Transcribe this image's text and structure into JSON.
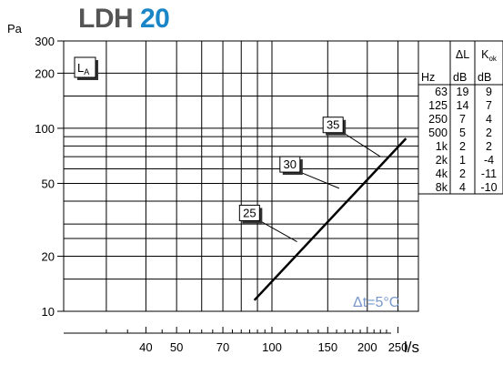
{
  "title": {
    "model": "LDH",
    "size": "20"
  },
  "y_unit": "Pa",
  "x_unit": "l/s",
  "la_label": "L",
  "la_sub": "A",
  "note": "Δt=5°C",
  "colors": {
    "title": "#555555",
    "accent": "#1a86c8",
    "note": "#7a98cc"
  },
  "chart_data": {
    "type": "line",
    "x_scale": "log",
    "y_scale": "log",
    "xlim": [
      22,
      290
    ],
    "ylim": [
      10,
      300
    ],
    "x_ticks": [
      40,
      50,
      70,
      100,
      150,
      200,
      250
    ],
    "x_tick_labels": [
      "40",
      "50",
      "70",
      "100",
      "150",
      "200",
      "250"
    ],
    "y_ticks": [
      10,
      20,
      50,
      100,
      200,
      300
    ],
    "y_tick_labels": [
      "10",
      "20",
      "50",
      "100",
      "200",
      "300"
    ],
    "series": [
      {
        "x": [
          88,
          265
        ],
        "y": [
          11.5,
          88
        ]
      }
    ],
    "sound_levels": [
      {
        "label": "25",
        "x": 120,
        "y": 24,
        "box_x": 79,
        "box_y": 38
      },
      {
        "label": "30",
        "x": 163,
        "y": 47,
        "box_x": 106,
        "box_y": 70
      },
      {
        "label": "35",
        "x": 220,
        "y": 70,
        "box_x": 145,
        "box_y": 115
      }
    ],
    "table": {
      "headers": [
        {
          "main": "",
          "sub": "Hz"
        },
        {
          "main": "ΔL",
          "sub": "dB"
        },
        {
          "main": "K",
          "main_sub": "ok",
          "sub": "dB"
        }
      ],
      "rows": [
        [
          "63",
          "19",
          "9"
        ],
        [
          "125",
          "14",
          "7"
        ],
        [
          "250",
          "7",
          "4"
        ],
        [
          "500",
          "5",
          "2"
        ],
        [
          "1k",
          "2",
          "2"
        ],
        [
          "2k",
          "1",
          "-4"
        ],
        [
          "4k",
          "2",
          "-11"
        ],
        [
          "8k",
          "4",
          "-10"
        ]
      ]
    }
  }
}
